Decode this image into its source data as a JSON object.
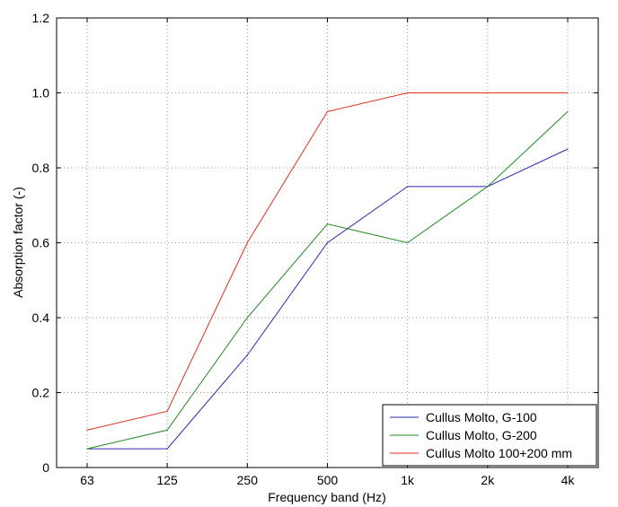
{
  "chart_data": {
    "type": "line",
    "title": "",
    "xlabel": "Frequency band (Hz)",
    "ylabel": "Absorption factor (-)",
    "categories": [
      "63",
      "125",
      "250",
      "500",
      "1k",
      "2k",
      "4k"
    ],
    "ylim": [
      0,
      1.2
    ],
    "yticks": [
      "0",
      "0.2",
      "0.4",
      "0.6",
      "0.8",
      "1.0",
      "1.2"
    ],
    "grid": true,
    "legend_position": "bottom-right",
    "series": [
      {
        "name": "Cullus Molto, G-100",
        "color": "#2b2bb8",
        "values": [
          0.05,
          0.05,
          0.3,
          0.6,
          0.75,
          0.75,
          0.85
        ]
      },
      {
        "name": "Cullus Molto, G-200",
        "color": "#1f8a1f",
        "values": [
          0.05,
          0.1,
          0.4,
          0.65,
          0.6,
          0.75,
          0.95
        ]
      },
      {
        "name": "Cullus Molto 100+200 mm",
        "color": "#e0301e",
        "values": [
          0.1,
          0.15,
          0.6,
          0.95,
          1.0,
          1.0,
          1.0
        ]
      }
    ]
  }
}
